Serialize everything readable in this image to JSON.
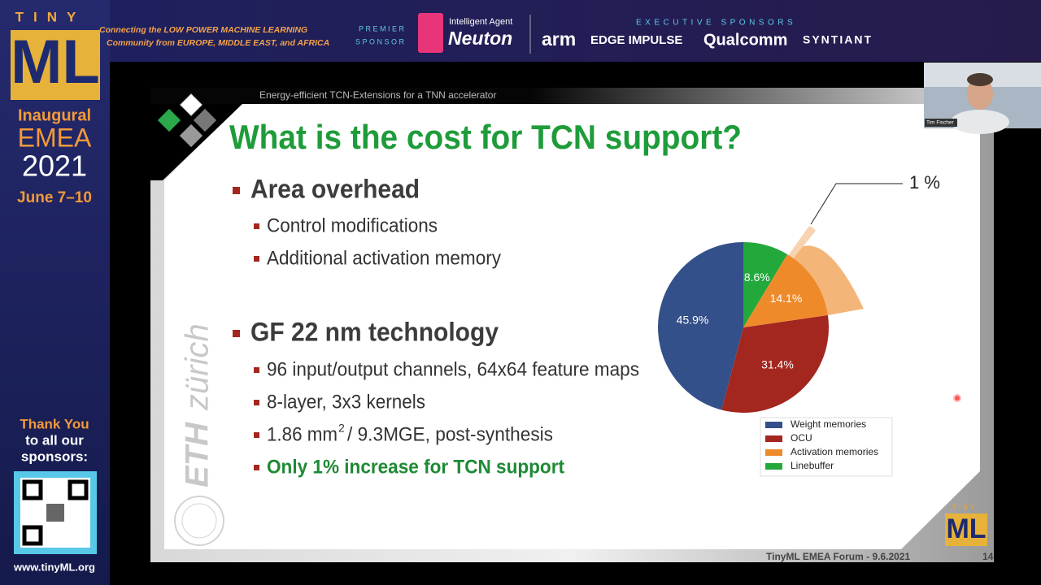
{
  "header": {
    "logo_top": "TINY",
    "logo_main": "ML",
    "tagline_line1": "Connecting the LOW POWER MACHINE LEARNING",
    "tagline_line2": "Community from EUROPE, MIDDLE EAST, and AFRICA",
    "premier_label_1": "PREMIER",
    "premier_label_2": "SPONSOR",
    "premier_tagline": "Intelligent Agent",
    "premier_name": "Neuton",
    "executive_label": "EXECUTIVE SPONSORS",
    "executive_sponsors": [
      "arm",
      "EDGE IMPULSE",
      "Qualcomm",
      "SYNTIANT"
    ]
  },
  "sidebar": {
    "line1": "Inaugural",
    "line2": "EMEA",
    "line3": "2021",
    "dates": "June 7–10",
    "thanks_1": "Thank You",
    "thanks_2": "to all our",
    "thanks_3": "sponsors:",
    "url": "www.tinyML.org"
  },
  "webcam": {
    "name": "Tim Fischer"
  },
  "slide": {
    "header": "Energy-efficient TCN-Extensions for a TNN accelerator",
    "title": "What is the cost for TCN support?",
    "bullet_1": "Area overhead",
    "bullet_1_items": [
      "Control modifications",
      "Additional activation memory"
    ],
    "bullet_2": "GF 22 nm technology",
    "bullet_2_items": [
      "96 input/output channels, 64x64 feature maps",
      "8-layer, 3x3 kernels"
    ],
    "area_text": "1.86 mm",
    "area_sup": "2",
    "area_rest": "/ 9.3MGE, post-synthesis",
    "highlight": "Only 1% increase for TCN support",
    "watermark_1": "ETH",
    "watermark_2": "zürich",
    "footer": "TinyML EMEA Forum - 9.6.2021",
    "page": "14",
    "small_logo_top": "TINY",
    "small_logo": "ML"
  },
  "chart_data": {
    "type": "pie",
    "categories": [
      "Weight memories",
      "OCU",
      "Activation memories",
      "Linebuffer"
    ],
    "values": [
      45.9,
      31.4,
      14.1,
      8.6
    ],
    "value_labels": [
      "45.9%",
      "31.4%",
      "14.1%",
      "8.6%"
    ],
    "colors": [
      "#34508a",
      "#a3271f",
      "#ef8a2b",
      "#23a83c"
    ],
    "annotation": "1 %",
    "legend": "lower right"
  }
}
